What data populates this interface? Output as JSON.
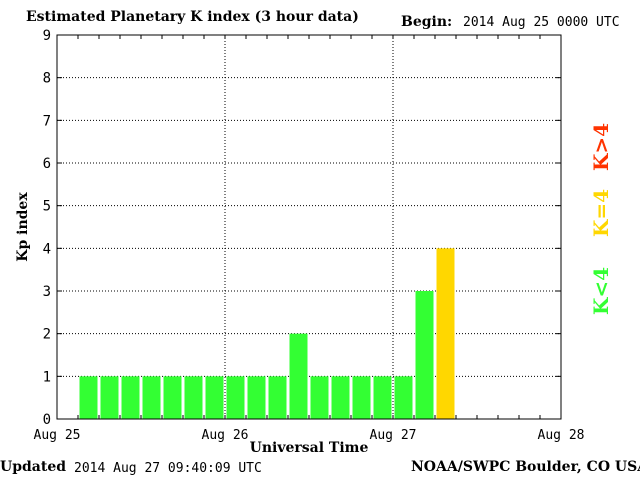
{
  "header": {
    "title": "Estimated Planetary K index (3 hour data)",
    "begin_label": "Begin:",
    "begin_value": "2014 Aug 25 0000 UTC"
  },
  "footer": {
    "updated_label": "Updated",
    "updated_value": "2014 Aug 27 09:40:09 UTC",
    "source": "NOAA/SWPC Boulder, CO USA"
  },
  "legend": {
    "above": "K>4",
    "equal": "K=4",
    "below": "K<4"
  },
  "colors": {
    "below": "#33ff33",
    "equal": "#ffd700",
    "above": "#ff3300",
    "grid": "#000000"
  },
  "chart_data": {
    "type": "bar",
    "title": "Estimated Planetary K index (3 hour data)",
    "xlabel": "Universal Time",
    "ylabel": "Kp index",
    "ylim": [
      0,
      9
    ],
    "yticks": [
      0,
      1,
      2,
      3,
      4,
      5,
      6,
      7,
      8,
      9
    ],
    "x_tick_labels": [
      "Aug 25",
      "Aug 26",
      "Aug 27",
      "Aug 28"
    ],
    "x_range_intervals": 24,
    "grid": true,
    "values": [
      1,
      1,
      1,
      1,
      1,
      1,
      1,
      1,
      1,
      1,
      2,
      1,
      1,
      1,
      1,
      1,
      3,
      4
    ]
  }
}
